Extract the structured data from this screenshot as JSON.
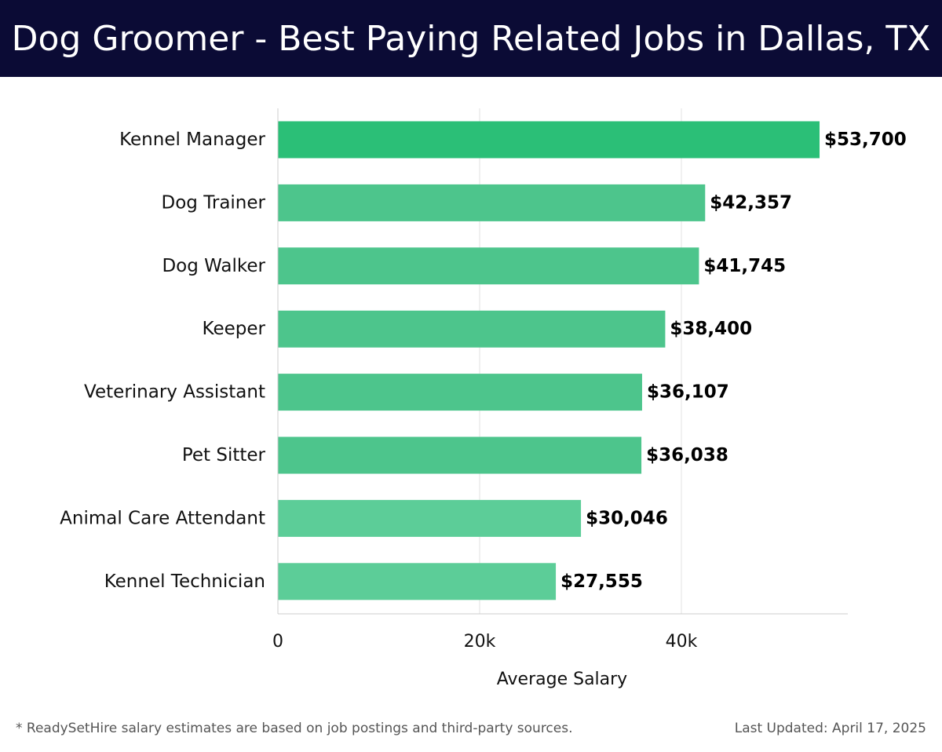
{
  "header": {
    "title": "Dog Groomer - Best Paying Related Jobs in Dallas, TX"
  },
  "chart_data": {
    "type": "bar",
    "orientation": "horizontal",
    "categories": [
      "Kennel Manager",
      "Dog Trainer",
      "Dog Walker",
      "Keeper",
      "Veterinary Assistant",
      "Pet Sitter",
      "Animal Care Attendant",
      "Kennel Technician"
    ],
    "values": [
      53700,
      42357,
      41745,
      38400,
      36107,
      36038,
      30046,
      27555
    ],
    "value_labels": [
      "$53,700",
      "$42,357",
      "$41,745",
      "$38,400",
      "$36,107",
      "$36,038",
      "$30,046",
      "$27,555"
    ],
    "xlabel": "Average Salary",
    "ylabel": "",
    "xlim": [
      0,
      56500
    ],
    "x_ticks": [
      0,
      20000,
      40000
    ],
    "x_tick_labels": [
      "0",
      "20k",
      "40k"
    ],
    "grid": true,
    "colors": {
      "top_bar": "#2bbf77",
      "bar": "#4dc58c",
      "bar_light": "#5ccd98"
    }
  },
  "footer": {
    "note": "* ReadySetHire salary estimates are based on job postings and third-party sources.",
    "updated": "Last Updated: April 17, 2025"
  }
}
